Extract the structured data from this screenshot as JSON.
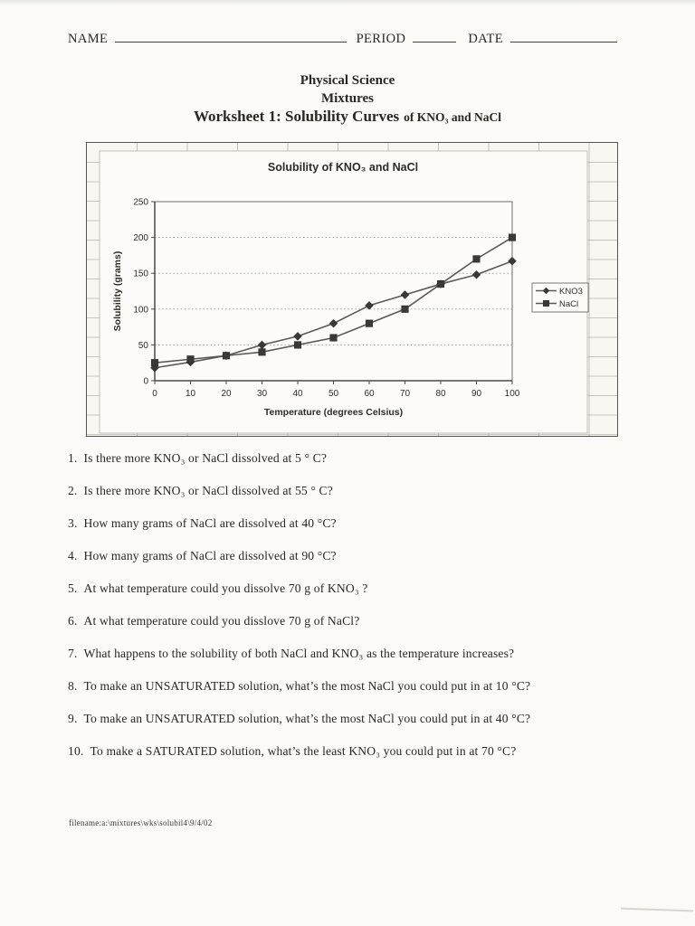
{
  "header": {
    "name_label": "NAME",
    "period_label": "PERIOD",
    "date_label": "DATE"
  },
  "title": {
    "line1": "Physical Science",
    "line2": "Mixtures",
    "line3_main": "Worksheet 1: Solubility Curves",
    "line3_suffix": "of KNO₃ and NaCl"
  },
  "questions": [
    {
      "num": "1.",
      "text": "Is there more KNO₃ or NaCl dissolved at 5 ° C?"
    },
    {
      "num": "2.",
      "text": "Is there more KNO₃ or NaCl dissolved at 55 ° C?"
    },
    {
      "num": "3.",
      "text": "How many grams of NaCl are dissolved at 40 °C?"
    },
    {
      "num": "4.",
      "text": "How many grams of NaCl are dissolved at 90 °C?"
    },
    {
      "num": "5.",
      "text": "At what temperature could you dissolve 70 g of KNO₃ ?"
    },
    {
      "num": "6.",
      "text": "At what temperature could you disslove 70 g of NaCl?"
    },
    {
      "num": "7.",
      "text": "What happens to the solubility of both NaCl and KNO₃  as the temperature increases?"
    },
    {
      "num": "8.",
      "text": "To make an UNSATURATED solution, what’s the most NaCl  you  could put in at 10 °C?"
    },
    {
      "num": "9.",
      "text": "To make an UNSATURATED solution, what’s the most NaCl  you  could put in at 40 °C?"
    },
    {
      "num": "10.",
      "text": "To make a SATURATED solution, what’s the least KNO₃  you  could put in at 70 °C?"
    }
  ],
  "footer": "filename:a:\\mixtures\\wks\\solubil4\\9/4/02",
  "chart_data": {
    "type": "line",
    "title": "Solubility of KNO₃  and NaCl",
    "xlabel": "Temperature (degrees Celsius)",
    "ylabel": "Solubility (grams)",
    "x": [
      0,
      10,
      20,
      30,
      40,
      50,
      60,
      70,
      80,
      90,
      100
    ],
    "series": [
      {
        "name": "KNO3",
        "marker": "diamond",
        "values": [
          18,
          26,
          35,
          50,
          62,
          80,
          105,
          120,
          135,
          148,
          167
        ]
      },
      {
        "name": "NaCl",
        "marker": "square",
        "values": [
          25,
          30,
          35,
          40,
          50,
          60,
          80,
          100,
          135,
          170,
          200
        ]
      }
    ],
    "xlim": [
      0,
      100
    ],
    "ylim": [
      0,
      250
    ],
    "xticks": [
      0,
      10,
      20,
      30,
      40,
      50,
      60,
      70,
      80,
      90,
      100
    ],
    "yticks": [
      0,
      50,
      100,
      150,
      200,
      250
    ],
    "grid": "horizontal-dotted",
    "legend_position": "right-inside"
  },
  "chart_style": {
    "line_color": "#5b5954",
    "marker_color": "#3b3935",
    "marker_edge_color": "#2b2925",
    "grid_color": "#9b988f",
    "axis_color": "#4b4944",
    "plot_border_color": "#716e67",
    "cell_grid_color": "#b6b4ad",
    "chart_bg": "#fcfbf7",
    "legend_border_color": "#7a776f"
  }
}
